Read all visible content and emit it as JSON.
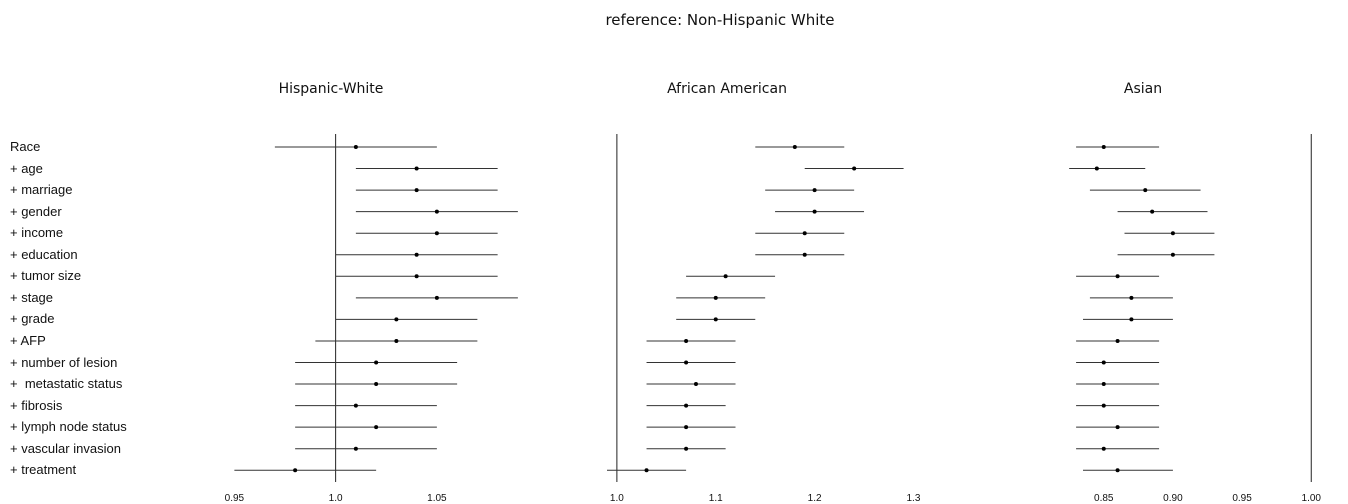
{
  "title": "reference: Non-Hispanic White",
  "chart_data": [
    {
      "type": "forest",
      "title": "Hispanic-White",
      "reference_line": 1.0,
      "xlim": [
        0.935,
        1.095
      ],
      "ticks": [
        "0.95",
        "1.0",
        "1.05"
      ],
      "tick_values": [
        0.95,
        1.0,
        1.05
      ],
      "points": [
        {
          "label": "Race",
          "est": 1.01,
          "lo": 0.97,
          "hi": 1.05
        },
        {
          "label": "+ age",
          "est": 1.04,
          "lo": 1.01,
          "hi": 1.08
        },
        {
          "label": "+ marriage",
          "est": 1.04,
          "lo": 1.01,
          "hi": 1.08
        },
        {
          "label": "+ gender",
          "est": 1.05,
          "lo": 1.01,
          "hi": 1.09
        },
        {
          "label": "+ income",
          "est": 1.05,
          "lo": 1.01,
          "hi": 1.08
        },
        {
          "label": "+ education",
          "est": 1.04,
          "lo": 1.0,
          "hi": 1.08
        },
        {
          "label": "+ tumor size",
          "est": 1.04,
          "lo": 1.0,
          "hi": 1.08
        },
        {
          "label": "+ stage",
          "est": 1.05,
          "lo": 1.01,
          "hi": 1.09
        },
        {
          "label": "+ grade",
          "est": 1.03,
          "lo": 1.0,
          "hi": 1.07
        },
        {
          "label": "+ AFP",
          "est": 1.03,
          "lo": 0.99,
          "hi": 1.07
        },
        {
          "label": "+ number of lesion",
          "est": 1.02,
          "lo": 0.98,
          "hi": 1.06
        },
        {
          "label": "+  metastatic status",
          "est": 1.02,
          "lo": 0.98,
          "hi": 1.06
        },
        {
          "label": "+ fibrosis",
          "est": 1.01,
          "lo": 0.98,
          "hi": 1.05
        },
        {
          "label": "+ lymph node status",
          "est": 1.02,
          "lo": 0.98,
          "hi": 1.05
        },
        {
          "label": "+ vascular invasion",
          "est": 1.01,
          "lo": 0.98,
          "hi": 1.05
        },
        {
          "label": "+ treatment",
          "est": 0.98,
          "lo": 0.95,
          "hi": 1.02
        }
      ]
    },
    {
      "type": "forest",
      "title": "African American",
      "reference_line": 1.0,
      "xlim": [
        0.99,
        1.34
      ],
      "ticks": [
        "1.0",
        "1.1",
        "1.2",
        "1.3"
      ],
      "tick_values": [
        1.0,
        1.1,
        1.2,
        1.3
      ],
      "points": [
        {
          "label": "Race",
          "est": 1.18,
          "lo": 1.14,
          "hi": 1.23
        },
        {
          "label": "+ age",
          "est": 1.24,
          "lo": 1.19,
          "hi": 1.29
        },
        {
          "label": "+ marriage",
          "est": 1.2,
          "lo": 1.15,
          "hi": 1.24
        },
        {
          "label": "+ gender",
          "est": 1.2,
          "lo": 1.16,
          "hi": 1.25
        },
        {
          "label": "+ income",
          "est": 1.19,
          "lo": 1.14,
          "hi": 1.23
        },
        {
          "label": "+ education",
          "est": 1.19,
          "lo": 1.14,
          "hi": 1.23
        },
        {
          "label": "+ tumor size",
          "est": 1.11,
          "lo": 1.07,
          "hi": 1.16
        },
        {
          "label": "+ stage",
          "est": 1.1,
          "lo": 1.06,
          "hi": 1.15
        },
        {
          "label": "+ grade",
          "est": 1.1,
          "lo": 1.06,
          "hi": 1.14
        },
        {
          "label": "+ AFP",
          "est": 1.07,
          "lo": 1.03,
          "hi": 1.12
        },
        {
          "label": "+ number of lesion",
          "est": 1.07,
          "lo": 1.03,
          "hi": 1.12
        },
        {
          "label": "+  metastatic status",
          "est": 1.08,
          "lo": 1.03,
          "hi": 1.12
        },
        {
          "label": "+ fibrosis",
          "est": 1.07,
          "lo": 1.03,
          "hi": 1.11
        },
        {
          "label": "+ lymph node status",
          "est": 1.07,
          "lo": 1.03,
          "hi": 1.12
        },
        {
          "label": "+ vascular invasion",
          "est": 1.07,
          "lo": 1.03,
          "hi": 1.11
        },
        {
          "label": "+ treatment",
          "est": 1.03,
          "lo": 0.99,
          "hi": 1.07
        }
      ]
    },
    {
      "type": "forest",
      "title": "Asian",
      "reference_line": 1.0,
      "xlim": [
        0.775,
        1.015
      ],
      "ticks": [
        "0.85",
        "0.90",
        "0.95",
        "1.00"
      ],
      "tick_values": [
        0.85,
        0.9,
        0.95,
        1.0
      ],
      "points": [
        {
          "label": "Race",
          "est": 0.85,
          "lo": 0.83,
          "hi": 0.89
        },
        {
          "label": "+ age",
          "est": 0.845,
          "lo": 0.825,
          "hi": 0.88
        },
        {
          "label": "+ marriage",
          "est": 0.88,
          "lo": 0.84,
          "hi": 0.92
        },
        {
          "label": "+ gender",
          "est": 0.885,
          "lo": 0.86,
          "hi": 0.925
        },
        {
          "label": "+ income",
          "est": 0.9,
          "lo": 0.865,
          "hi": 0.93
        },
        {
          "label": "+ education",
          "est": 0.9,
          "lo": 0.86,
          "hi": 0.93
        },
        {
          "label": "+ tumor size",
          "est": 0.86,
          "lo": 0.83,
          "hi": 0.89
        },
        {
          "label": "+ stage",
          "est": 0.87,
          "lo": 0.84,
          "hi": 0.9
        },
        {
          "label": "+ grade",
          "est": 0.87,
          "lo": 0.835,
          "hi": 0.9
        },
        {
          "label": "+ AFP",
          "est": 0.86,
          "lo": 0.83,
          "hi": 0.89
        },
        {
          "label": "+ number of lesion",
          "est": 0.85,
          "lo": 0.83,
          "hi": 0.89
        },
        {
          "label": "+  metastatic status",
          "est": 0.85,
          "lo": 0.83,
          "hi": 0.89
        },
        {
          "label": "+ fibrosis",
          "est": 0.85,
          "lo": 0.83,
          "hi": 0.89
        },
        {
          "label": "+ lymph node status",
          "est": 0.86,
          "lo": 0.83,
          "hi": 0.89
        },
        {
          "label": "+ vascular invasion",
          "est": 0.85,
          "lo": 0.83,
          "hi": 0.89
        },
        {
          "label": "+ treatment",
          "est": 0.86,
          "lo": 0.835,
          "hi": 0.9
        }
      ]
    }
  ]
}
